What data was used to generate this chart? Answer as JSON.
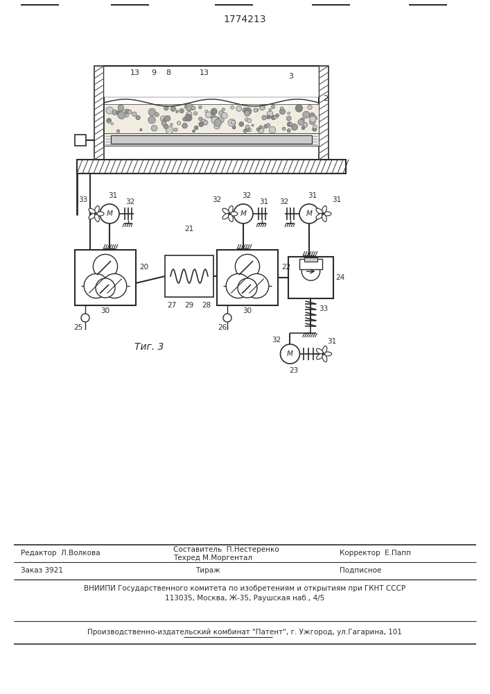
{
  "patent_number": "1774213",
  "fig_label": "Τиг. 3",
  "bg_color": "#ffffff",
  "line_color": "#2a2a2a",
  "footer": {
    "editor": "Редактор  Л.Волкова",
    "sostavitel": "Составитель  П.Нестеренко",
    "tehred": "Техред М.Моргентал",
    "korrektor": "Корректор  Е.Папп",
    "zakaz": "Заказ 3921",
    "tirazh": "Тираж",
    "podpisnoe": "Подписное",
    "vniip1": "ВНИИПИ Государственного комитета по изобретениям и открытиям при ГКНТ СССР",
    "vniip2": "113035, Москва, Ж-35, Раушская наб., 4/5",
    "proizv": "Производственно-издательский комбинат \"Патент\", г. Ужгород, ул.Гагарина, 101"
  }
}
